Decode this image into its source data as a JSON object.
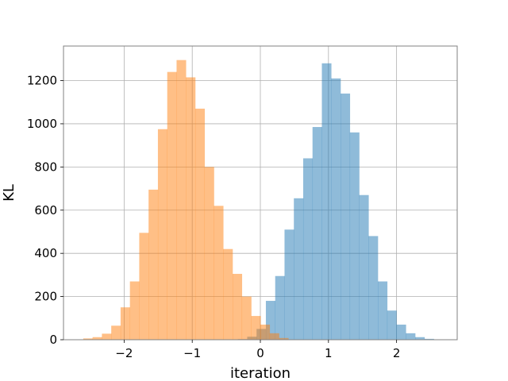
{
  "chart_data": {
    "type": "bar",
    "title": "",
    "xlabel": "iteration",
    "ylabel": "KL",
    "xlim": [
      -2.89,
      2.89
    ],
    "ylim": [
      0,
      1360
    ],
    "grid": true,
    "legend": "none",
    "xticks": [
      -2,
      -1,
      0,
      1,
      2
    ],
    "xtick_labels": [
      "−2",
      "−1",
      "0",
      "1",
      "2"
    ],
    "yticks": [
      0,
      200,
      400,
      600,
      800,
      1000,
      1200
    ],
    "ytick_labels": [
      "0",
      "200",
      "400",
      "600",
      "800",
      "1000",
      "1200"
    ],
    "series": [
      {
        "color": "#1f77b4",
        "opacity": 0.5,
        "bin_width": 0.137,
        "bin_starts": [
          -0.33,
          -0.193,
          -0.056,
          0.081,
          0.218,
          0.355,
          0.492,
          0.629,
          0.766,
          0.903,
          1.04,
          1.177,
          1.314,
          1.451,
          1.588,
          1.725,
          1.862,
          1.999,
          2.136,
          2.273,
          2.41
        ],
        "counts": [
          3,
          14,
          50,
          180,
          295,
          510,
          655,
          840,
          985,
          1280,
          1210,
          1140,
          960,
          670,
          480,
          270,
          135,
          70,
          30,
          12,
          4
        ]
      },
      {
        "color": "#ff7f0e",
        "opacity": 0.5,
        "bin_width": 0.137,
        "bin_starts": [
          -2.6,
          -2.463,
          -2.326,
          -2.189,
          -2.052,
          -1.915,
          -1.778,
          -1.641,
          -1.504,
          -1.367,
          -1.23,
          -1.093,
          -0.956,
          -0.819,
          -0.682,
          -0.545,
          -0.408,
          -0.271,
          -0.134,
          -0.0,
          0.137,
          0.274
        ],
        "counts": [
          6,
          12,
          28,
          65,
          150,
          270,
          495,
          695,
          975,
          1240,
          1295,
          1215,
          1070,
          800,
          620,
          420,
          305,
          200,
          110,
          70,
          30,
          8
        ]
      }
    ]
  }
}
